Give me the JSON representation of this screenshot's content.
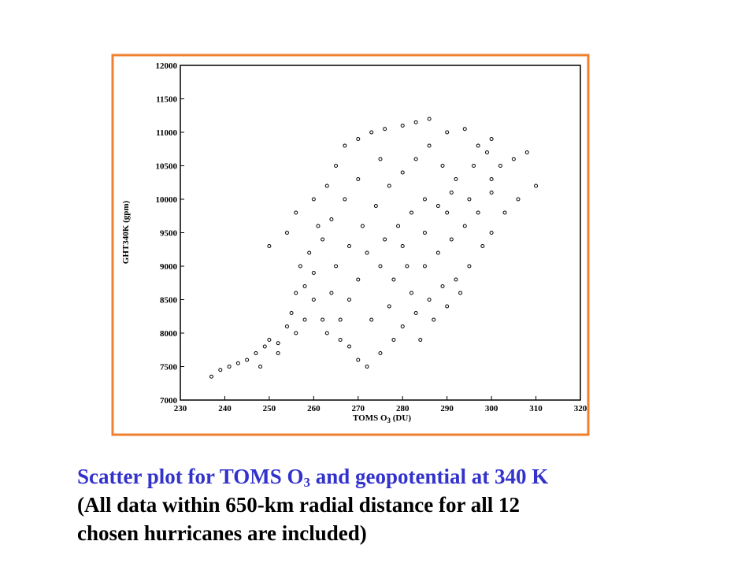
{
  "chart_data": {
    "type": "scatter",
    "xlabel": [
      "TOMS O",
      "3",
      " (DU)"
    ],
    "ylabel": "GHT340K (gpm)",
    "xlim": [
      230,
      320
    ],
    "xticks": [
      230,
      240,
      250,
      260,
      270,
      280,
      290,
      300,
      310,
      320
    ],
    "ylim": [
      7000,
      12000
    ],
    "yticks": [
      7000,
      7500,
      8000,
      8500,
      9000,
      9500,
      10000,
      10500,
      11000,
      11500,
      12000
    ],
    "color": "#000000",
    "x": [
      237,
      239,
      241,
      243,
      245,
      247,
      249,
      250,
      252,
      254,
      255,
      256,
      258,
      260,
      257,
      259,
      262,
      250,
      254,
      256,
      260,
      263,
      265,
      267,
      270,
      273,
      276,
      280,
      283,
      286,
      290,
      294,
      297,
      300,
      305,
      308,
      310,
      300,
      295,
      290,
      285,
      280,
      275,
      270,
      268,
      266,
      268,
      270,
      272,
      275,
      278,
      280,
      283,
      286,
      289,
      292,
      295,
      298,
      300,
      303,
      306,
      287,
      284,
      290,
      293,
      282,
      277,
      273,
      265,
      268,
      271,
      274,
      277,
      280,
      283,
      286,
      289,
      292,
      296,
      299,
      302,
      285,
      282,
      279,
      276,
      272,
      262,
      264,
      260,
      258,
      248,
      252,
      256,
      263,
      266,
      285,
      288,
      291,
      294,
      297,
      300,
      275,
      270,
      267,
      264,
      261,
      278,
      281,
      288,
      291
    ],
    "y": [
      7350,
      7450,
      7500,
      7550,
      7600,
      7700,
      7800,
      7900,
      7850,
      8100,
      8300,
      8600,
      8700,
      8900,
      9000,
      9200,
      9400,
      9300,
      9500,
      9800,
      10000,
      10200,
      10500,
      10800,
      10900,
      11000,
      11050,
      11100,
      11150,
      11200,
      11000,
      11050,
      10800,
      10900,
      10600,
      10700,
      10200,
      10300,
      10000,
      9800,
      9500,
      9300,
      9000,
      8800,
      8500,
      8200,
      7800,
      7600,
      7500,
      7700,
      7900,
      8100,
      8300,
      8500,
      8700,
      8800,
      9000,
      9300,
      9500,
      9800,
      10000,
      8200,
      7900,
      8400,
      8600,
      8600,
      8400,
      8200,
      9000,
      9300,
      9600,
      9900,
      10200,
      10400,
      10600,
      10800,
      10500,
      10300,
      10500,
      10700,
      10500,
      10000,
      9800,
      9600,
      9400,
      9200,
      8200,
      8600,
      8500,
      8200,
      7500,
      7700,
      8000,
      8000,
      7900,
      9000,
      9200,
      9400,
      9600,
      9800,
      10100,
      10600,
      10300,
      10000,
      9700,
      9600,
      8800,
      9000,
      9900,
      10100
    ]
  },
  "caption": {
    "title": [
      "Scatter plot for TOMS O",
      "3",
      " and geopotential at 340 K"
    ],
    "lines": [
      "(All data within 650-km radial distance for all 12",
      "chosen hurricanes are included)"
    ]
  }
}
